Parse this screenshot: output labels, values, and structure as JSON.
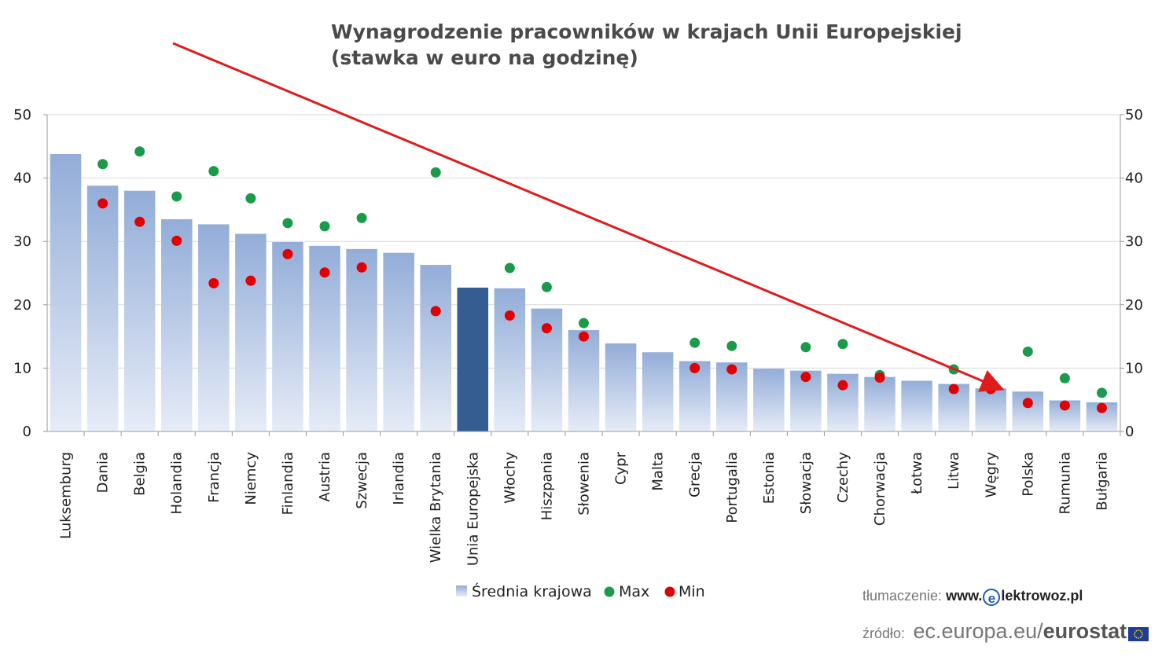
{
  "title": {
    "line1": "Wynagrodzenie pracowników w krajach Unii Europejskiej",
    "line2": "(stawka w euro na godzinę)"
  },
  "chart_data": {
    "type": "bar",
    "categories": [
      "Luksemburg",
      "Dania",
      "Belgia",
      "Holandia",
      "Francja",
      "Niemcy",
      "Finlandia",
      "Austria",
      "Szwecja",
      "Irlandia",
      "Wielka Brytania",
      "Unia Europejska",
      "Włochy",
      "Hiszpania",
      "Słowenia",
      "Cypr",
      "Malta",
      "Grecja",
      "Portugalia",
      "Estonia",
      "Słowacja",
      "Czechy",
      "Chorwacja",
      "Łotwa",
      "Litwa",
      "Węgry",
      "Polska",
      "Rumunia",
      "Bułgaria"
    ],
    "series": [
      {
        "name": "Średnia krajowa",
        "type": "bar",
        "values": [
          43.8,
          38.8,
          38.0,
          33.5,
          32.7,
          31.2,
          29.9,
          29.3,
          28.8,
          28.2,
          26.3,
          22.7,
          22.6,
          19.4,
          16.0,
          13.9,
          12.5,
          11.1,
          10.9,
          9.9,
          9.6,
          9.1,
          8.6,
          8.0,
          7.5,
          6.8,
          6.3,
          4.9,
          4.6
        ]
      },
      {
        "name": "Max",
        "type": "scatter",
        "color": "#1a9a4a",
        "values": [
          null,
          42.2,
          44.2,
          37.1,
          41.1,
          36.8,
          32.9,
          32.4,
          33.7,
          null,
          40.9,
          null,
          25.8,
          22.8,
          17.1,
          null,
          null,
          14.0,
          13.5,
          null,
          13.3,
          13.8,
          8.9,
          null,
          9.8,
          7.1,
          12.6,
          8.4,
          6.1
        ]
      },
      {
        "name": "Min",
        "type": "scatter",
        "color": "#e00000",
        "values": [
          null,
          36.0,
          33.1,
          30.1,
          23.4,
          23.8,
          28.0,
          25.1,
          25.9,
          null,
          19.0,
          null,
          18.3,
          16.3,
          15.0,
          null,
          null,
          10.0,
          9.8,
          null,
          8.6,
          7.3,
          8.5,
          null,
          6.7,
          6.7,
          4.5,
          4.1,
          3.7
        ]
      }
    ],
    "highlight_category": "Unia Europejska",
    "highlight_color": "#355d91",
    "bar_color_top": "#93add8",
    "bar_color_bottom": "#e6ecf7",
    "ylim": [
      0,
      50
    ],
    "yticks": [
      0,
      10,
      20,
      30,
      40,
      50
    ],
    "y_axis_both_sides": true,
    "grid": true,
    "trend_arrow_color": "#e01b1b",
    "legend_position": "bottom",
    "legend": [
      "Średnia krajowa",
      "Max",
      "Min"
    ]
  },
  "footer": {
    "translation_label": "tłumaczenie:",
    "translation_site_pre": "www.",
    "translation_site_badge": "e",
    "translation_site_post": "lektrowoz.pl",
    "source_label": "źródło:",
    "source_domain": "ec.europa.eu/",
    "source_brand": "eurostat"
  }
}
